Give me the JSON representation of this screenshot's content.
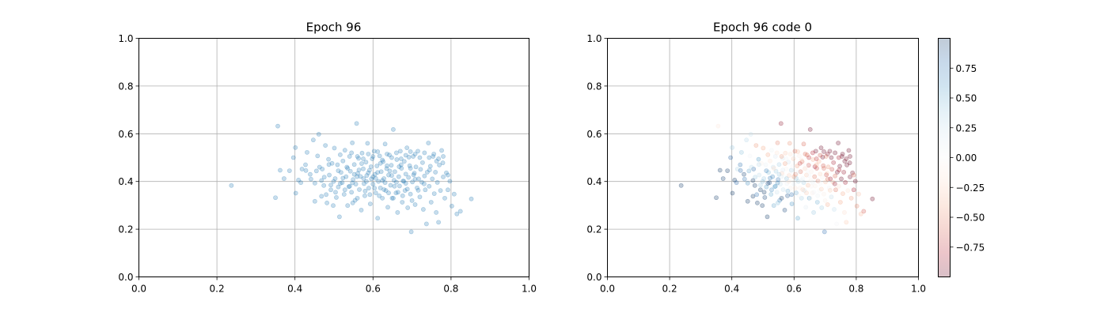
{
  "chart_data": [
    {
      "type": "scatter",
      "title": "Epoch 96",
      "xlabel": "",
      "ylabel": "",
      "xlim": [
        0.0,
        1.0
      ],
      "ylim": [
        0.0,
        1.0
      ],
      "xticks": [
        "0.0",
        "0.2",
        "0.4",
        "0.6",
        "0.8",
        "1.0"
      ],
      "yticks": [
        "0.0",
        "0.2",
        "0.4",
        "0.6",
        "0.8",
        "1.0"
      ],
      "grid": true,
      "marker_color": "#1f77b4",
      "marker_alpha": 0.25,
      "points": [
        [
          0.356,
          0.632
        ],
        [
          0.237,
          0.383
        ],
        [
          0.35,
          0.332
        ],
        [
          0.362,
          0.447
        ],
        [
          0.372,
          0.412
        ],
        [
          0.386,
          0.445
        ],
        [
          0.396,
          0.5
        ],
        [
          0.401,
          0.542
        ],
        [
          0.402,
          0.351
        ],
        [
          0.409,
          0.406
        ],
        [
          0.418,
          0.452
        ],
        [
          0.428,
          0.446
        ],
        [
          0.431,
          0.522
        ],
        [
          0.441,
          0.41
        ],
        [
          0.447,
          0.574
        ],
        [
          0.451,
          0.317
        ],
        [
          0.455,
          0.444
        ],
        [
          0.458,
          0.507
        ],
        [
          0.461,
          0.598
        ],
        [
          0.468,
          0.338
        ],
        [
          0.47,
          0.452
        ],
        [
          0.474,
          0.383
        ],
        [
          0.478,
          0.551
        ],
        [
          0.482,
          0.31
        ],
        [
          0.486,
          0.493
        ],
        [
          0.488,
          0.427
        ],
        [
          0.492,
          0.365
        ],
        [
          0.495,
          0.476
        ],
        [
          0.498,
          0.299
        ],
        [
          0.501,
          0.54
        ],
        [
          0.503,
          0.412
        ],
        [
          0.506,
          0.333
        ],
        [
          0.509,
          0.47
        ],
        [
          0.511,
          0.377
        ],
        [
          0.514,
          0.252
        ],
        [
          0.516,
          0.512
        ],
        [
          0.518,
          0.438
        ],
        [
          0.521,
          0.395
        ],
        [
          0.523,
          0.486
        ],
        [
          0.526,
          0.346
        ],
        [
          0.528,
          0.531
        ],
        [
          0.531,
          0.42
        ],
        [
          0.533,
          0.46
        ],
        [
          0.535,
          0.299
        ],
        [
          0.538,
          0.378
        ],
        [
          0.54,
          0.505
        ],
        [
          0.542,
          0.443
        ],
        [
          0.545,
          0.355
        ],
        [
          0.547,
          0.562
        ],
        [
          0.549,
          0.408
        ],
        [
          0.552,
          0.471
        ],
        [
          0.554,
          0.321
        ],
        [
          0.556,
          0.389
        ],
        [
          0.558,
          0.643
        ],
        [
          0.561,
          0.434
        ],
        [
          0.563,
          0.497
        ],
        [
          0.565,
          0.366
        ],
        [
          0.568,
          0.421
        ],
        [
          0.57,
          0.28
        ],
        [
          0.572,
          0.519
        ],
        [
          0.575,
          0.453
        ],
        [
          0.577,
          0.391
        ],
        [
          0.579,
          0.34
        ],
        [
          0.582,
          0.481
        ],
        [
          0.584,
          0.425
        ],
        [
          0.586,
          0.56
        ],
        [
          0.589,
          0.372
        ],
        [
          0.591,
          0.447
        ],
        [
          0.593,
          0.306
        ],
        [
          0.596,
          0.411
        ],
        [
          0.598,
          0.495
        ],
        [
          0.6,
          0.389
        ],
        [
          0.603,
          0.527
        ],
        [
          0.605,
          0.43
        ],
        [
          0.607,
          0.352
        ],
        [
          0.61,
          0.465
        ],
        [
          0.612,
          0.246
        ],
        [
          0.614,
          0.4
        ],
        [
          0.617,
          0.507
        ],
        [
          0.619,
          0.373
        ],
        [
          0.621,
          0.441
        ],
        [
          0.624,
          0.33
        ],
        [
          0.626,
          0.483
        ],
        [
          0.628,
          0.412
        ],
        [
          0.631,
          0.557
        ],
        [
          0.633,
          0.362
        ],
        [
          0.635,
          0.454
        ],
        [
          0.638,
          0.292
        ],
        [
          0.64,
          0.427
        ],
        [
          0.642,
          0.511
        ],
        [
          0.645,
          0.384
        ],
        [
          0.647,
          0.468
        ],
        [
          0.649,
          0.33
        ],
        [
          0.652,
          0.618
        ],
        [
          0.654,
          0.405
        ],
        [
          0.656,
          0.441
        ],
        [
          0.659,
          0.352
        ],
        [
          0.661,
          0.492
        ],
        [
          0.663,
          0.27
        ],
        [
          0.666,
          0.42
        ],
        [
          0.668,
          0.381
        ],
        [
          0.67,
          0.527
        ],
        [
          0.673,
          0.455
        ],
        [
          0.675,
          0.313
        ],
        [
          0.677,
          0.402
        ],
        [
          0.68,
          0.484
        ],
        [
          0.682,
          0.362
        ],
        [
          0.684,
          0.431
        ],
        [
          0.687,
          0.541
        ],
        [
          0.689,
          0.29
        ],
        [
          0.691,
          0.417
        ],
        [
          0.694,
          0.466
        ],
        [
          0.696,
          0.347
        ],
        [
          0.698,
          0.189
        ],
        [
          0.701,
          0.398
        ],
        [
          0.703,
          0.505
        ],
        [
          0.706,
          0.435
        ],
        [
          0.708,
          0.303
        ],
        [
          0.71,
          0.461
        ],
        [
          0.713,
          0.373
        ],
        [
          0.715,
          0.527
        ],
        [
          0.717,
          0.411
        ],
        [
          0.72,
          0.335
        ],
        [
          0.722,
          0.451
        ],
        [
          0.725,
          0.397
        ],
        [
          0.727,
          0.479
        ],
        [
          0.729,
          0.283
        ],
        [
          0.732,
          0.423
        ],
        [
          0.734,
          0.365
        ],
        [
          0.737,
          0.222
        ],
        [
          0.739,
          0.439
        ],
        [
          0.742,
          0.561
        ],
        [
          0.744,
          0.38
        ],
        [
          0.747,
          0.464
        ],
        [
          0.749,
          0.313
        ],
        [
          0.752,
          0.411
        ],
        [
          0.754,
          0.505
        ],
        [
          0.757,
          0.349
        ],
        [
          0.76,
          0.439
        ],
        [
          0.762,
          0.27
        ],
        [
          0.765,
          0.396
        ],
        [
          0.768,
          0.229
        ],
        [
          0.77,
          0.469
        ],
        [
          0.773,
          0.362
        ],
        [
          0.776,
          0.53
        ],
        [
          0.78,
          0.419
        ],
        [
          0.784,
          0.33
        ],
        [
          0.788,
          0.436
        ],
        [
          0.792,
          0.365
        ],
        [
          0.797,
          0.401
        ],
        [
          0.802,
          0.297
        ],
        [
          0.808,
          0.347
        ],
        [
          0.815,
          0.264
        ],
        [
          0.824,
          0.275
        ],
        [
          0.852,
          0.327
        ],
        [
          0.792,
          0.427
        ],
        [
          0.779,
          0.478
        ],
        [
          0.763,
          0.485
        ],
        [
          0.745,
          0.448
        ],
        [
          0.731,
          0.39
        ],
        [
          0.716,
          0.363
        ],
        [
          0.704,
          0.428
        ],
        [
          0.692,
          0.502
        ],
        [
          0.679,
          0.401
        ],
        [
          0.667,
          0.462
        ],
        [
          0.655,
          0.38
        ],
        [
          0.643,
          0.444
        ],
        [
          0.631,
          0.395
        ],
        [
          0.619,
          0.476
        ],
        [
          0.607,
          0.413
        ],
        [
          0.595,
          0.462
        ],
        [
          0.583,
          0.4
        ],
        [
          0.571,
          0.475
        ],
        [
          0.559,
          0.42
        ],
        [
          0.547,
          0.394
        ],
        [
          0.535,
          0.455
        ],
        [
          0.523,
          0.414
        ],
        [
          0.511,
          0.445
        ],
        [
          0.499,
          0.4
        ],
        [
          0.487,
          0.471
        ],
        [
          0.475,
          0.418
        ],
        [
          0.463,
          0.46
        ],
        [
          0.451,
          0.393
        ],
        [
          0.439,
          0.43
        ],
        [
          0.427,
          0.47
        ],
        [
          0.415,
          0.395
        ],
        [
          0.576,
          0.412
        ],
        [
          0.588,
          0.436
        ],
        [
          0.564,
          0.448
        ],
        [
          0.552,
          0.43
        ],
        [
          0.6,
          0.42
        ],
        [
          0.612,
          0.438
        ],
        [
          0.624,
          0.404
        ],
        [
          0.636,
          0.466
        ],
        [
          0.648,
          0.425
        ],
        [
          0.66,
          0.397
        ],
        [
          0.672,
          0.47
        ],
        [
          0.684,
          0.392
        ],
        [
          0.696,
          0.455
        ],
        [
          0.708,
          0.41
        ],
        [
          0.54,
          0.38
        ],
        [
          0.528,
          0.365
        ],
        [
          0.516,
          0.392
        ],
        [
          0.504,
          0.355
        ],
        [
          0.492,
          0.385
        ],
        [
          0.48,
          0.345
        ],
        [
          0.468,
          0.404
        ],
        [
          0.58,
          0.36
        ],
        [
          0.592,
          0.345
        ],
        [
          0.604,
          0.372
        ],
        [
          0.616,
          0.34
        ],
        [
          0.628,
          0.366
        ],
        [
          0.64,
          0.352
        ],
        [
          0.652,
          0.33
        ],
        [
          0.664,
          0.355
        ],
        [
          0.676,
          0.34
        ],
        [
          0.688,
          0.368
        ],
        [
          0.7,
          0.32
        ],
        [
          0.56,
          0.33
        ],
        [
          0.548,
          0.31
        ],
        [
          0.575,
          0.495
        ],
        [
          0.588,
          0.515
        ],
        [
          0.6,
          0.505
        ],
        [
          0.612,
          0.525
        ],
        [
          0.624,
          0.49
        ],
        [
          0.636,
          0.515
        ],
        [
          0.648,
          0.5
        ],
        [
          0.66,
          0.52
        ],
        [
          0.672,
          0.495
        ],
        [
          0.684,
          0.51
        ],
        [
          0.696,
          0.525
        ],
        [
          0.708,
          0.515
        ],
        [
          0.72,
          0.5
        ],
        [
          0.732,
          0.52
        ],
        [
          0.744,
          0.5
        ],
        [
          0.756,
          0.515
        ],
        [
          0.768,
          0.495
        ],
        [
          0.78,
          0.505
        ],
        [
          0.56,
          0.505
        ],
        [
          0.545,
          0.52
        ]
      ]
    },
    {
      "type": "scatter",
      "title": "Epoch 96 code 0",
      "xlabel": "",
      "ylabel": "",
      "xlim": [
        0.0,
        1.0
      ],
      "ylim": [
        0.0,
        1.0
      ],
      "xticks": [
        "0.0",
        "0.2",
        "0.4",
        "0.6",
        "0.8",
        "1.0"
      ],
      "yticks": [
        "0.0",
        "0.2",
        "0.4",
        "0.6",
        "0.8",
        "1.0"
      ],
      "grid": true,
      "marker_alpha": 0.25,
      "colormap": "RdBu",
      "colorbar": {
        "range": [
          -1.0,
          1.0
        ],
        "ticks": [
          -0.75,
          -0.5,
          -0.25,
          0.0,
          0.25,
          0.5,
          0.75
        ],
        "tick_labels": [
          "−0.75",
          "−0.50",
          "−0.25",
          "0.00",
          "0.25",
          "0.50",
          "0.75"
        ],
        "colors": [
          "#67001f",
          "#b2182b",
          "#d6604d",
          "#f4a582",
          "#fddbc7",
          "#f7f7f7",
          "#d1e5f0",
          "#92c5de",
          "#4393c3",
          "#2166ac",
          "#053061"
        ]
      }
    }
  ]
}
